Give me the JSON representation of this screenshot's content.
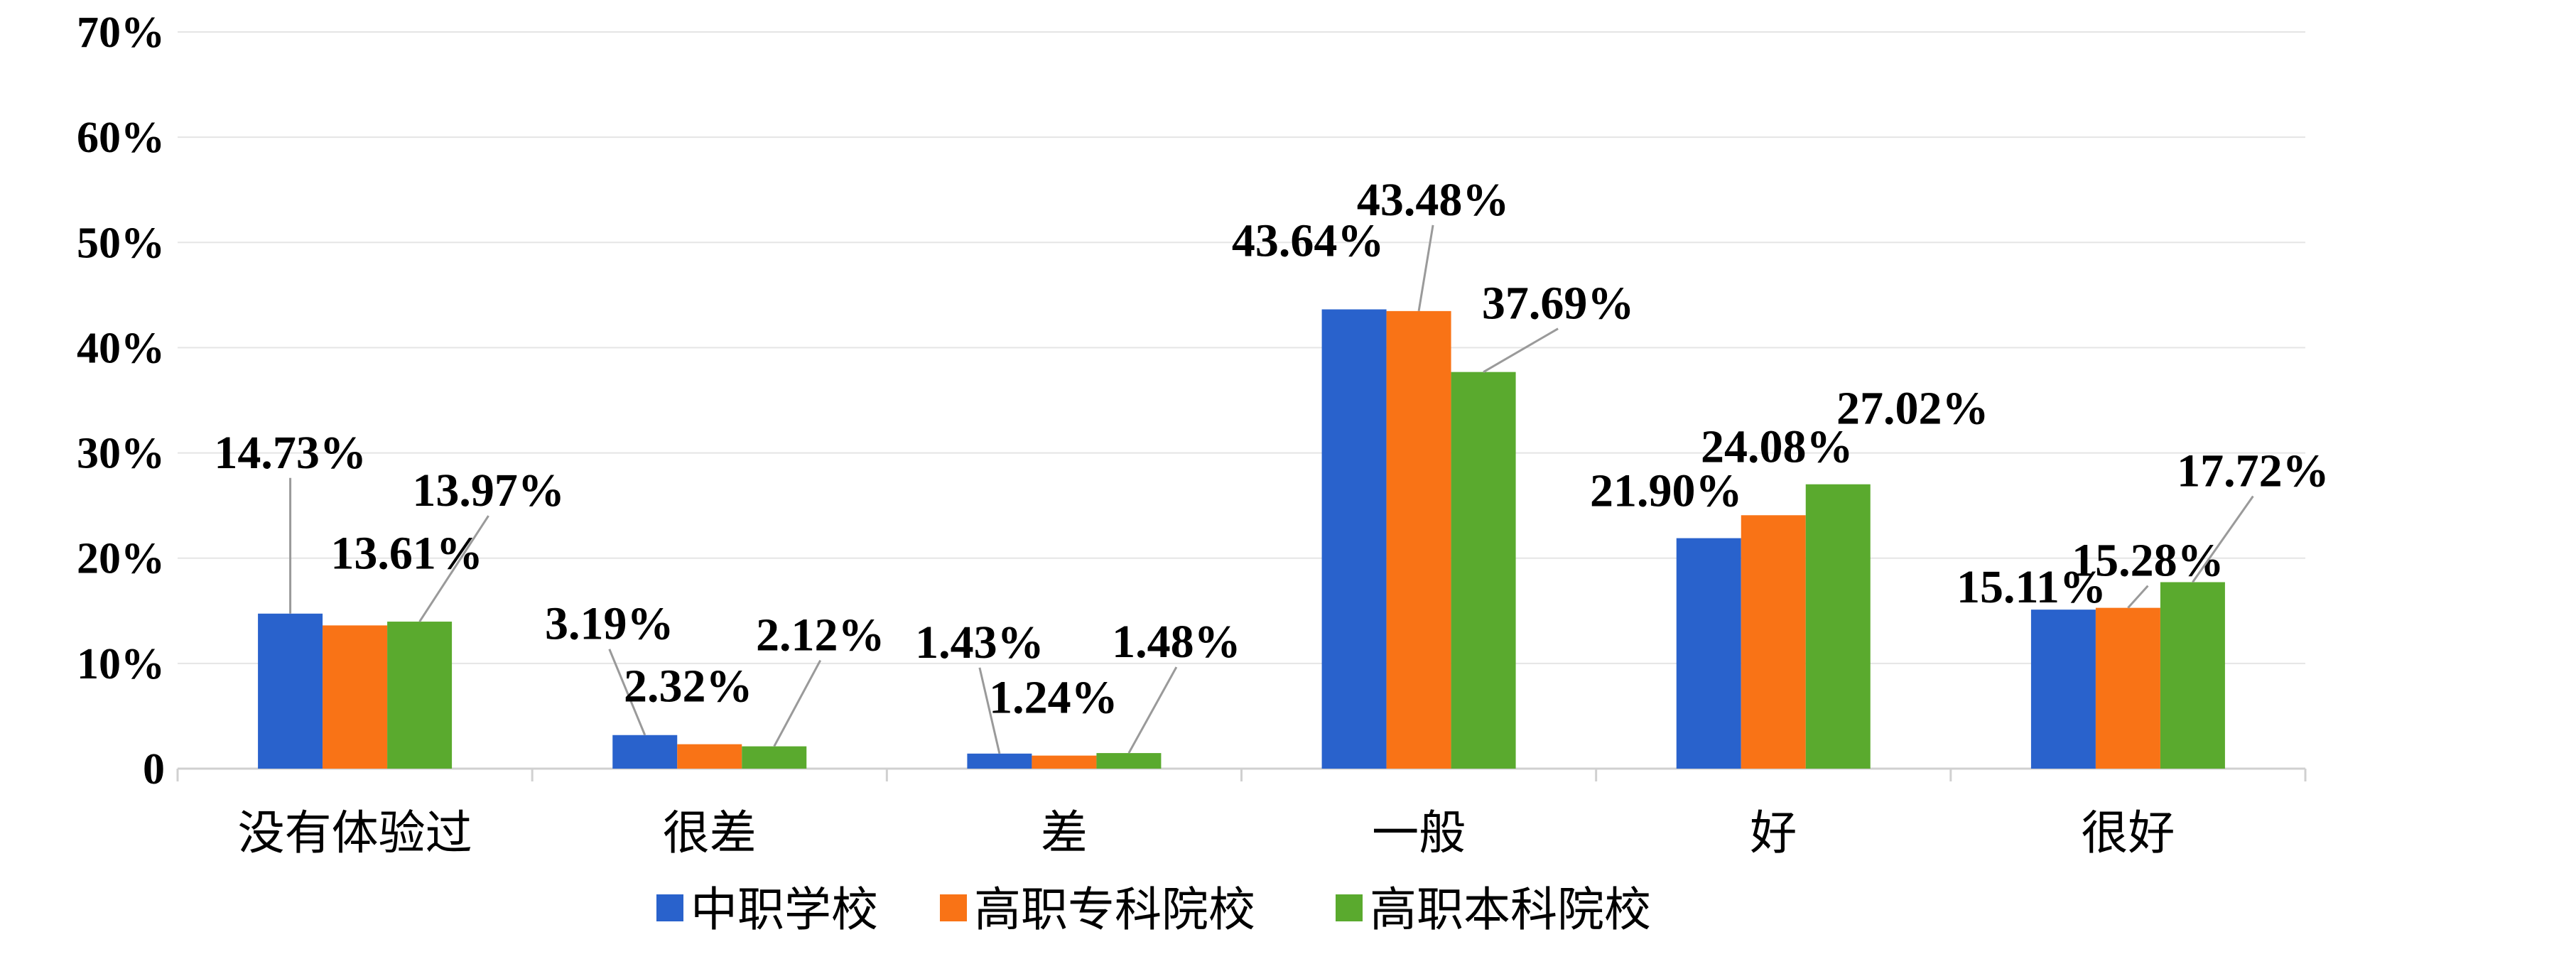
{
  "chart_data": {
    "type": "bar",
    "categories": [
      "没有体验过",
      "很差",
      "差",
      "一般",
      "好",
      "很好"
    ],
    "series": [
      {
        "name": "中职学校",
        "values": [
          14.73,
          3.19,
          1.43,
          43.64,
          21.9,
          15.11
        ],
        "labels": [
          "14.73%",
          "3.19%",
          "1.43%",
          "43.64%",
          "21.90%",
          "15.11%"
        ],
        "color": "#2962cc"
      },
      {
        "name": "高职专科院校",
        "values": [
          13.61,
          2.32,
          1.24,
          43.48,
          24.08,
          15.28
        ],
        "labels": [
          "13.61%",
          "2.32%",
          "1.24%",
          "43.48%",
          "24.08%",
          "15.28%"
        ],
        "color": "#f97316"
      },
      {
        "name": "高职本科院校",
        "values": [
          13.97,
          2.12,
          1.48,
          37.69,
          27.02,
          17.72
        ],
        "labels": [
          "13.97%",
          "2.12%",
          "1.48%",
          "37.69%",
          "27.02%",
          "17.72%"
        ],
        "color": "#5aaa2e"
      }
    ],
    "yticks": [
      "0",
      "10%",
      "20%",
      "30%",
      "40%",
      "50%",
      "60%",
      "70%"
    ],
    "ylim": [
      0,
      70
    ],
    "grid": true,
    "legend_position": "bottom"
  }
}
